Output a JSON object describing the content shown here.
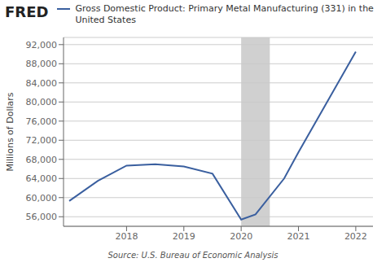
{
  "chart_data": {
    "type": "line",
    "title": "FRED",
    "ylabel": "Millions of Dollars",
    "annotations": [
      "Source: U.S. Bureau of Economic Analysis"
    ],
    "x": [
      2017.0,
      2017.5,
      2018.0,
      2018.5,
      2019.0,
      2019.5,
      2020.0,
      2020.25,
      2020.75,
      2021.0,
      2021.5,
      2022.0
    ],
    "series": [
      {
        "name": "Gross Domestic Product: Primary Metal Manufacturing (331) in the United States",
        "color": "#3a5f9f",
        "values": [
          59300,
          63500,
          66700,
          67000,
          66500,
          65000,
          55400,
          56500,
          64000,
          69500,
          80000,
          90500
        ]
      }
    ],
    "recession": {
      "start": 2020.0,
      "end": 2020.5,
      "color": "#c8c8c8"
    },
    "xlim": [
      2016.9,
      2022.3
    ],
    "ylim": [
      54000,
      93500
    ],
    "xticks": [
      2018,
      2019,
      2020,
      2021,
      2022
    ],
    "yticks": [
      {
        "value": 56000,
        "label": "56,000"
      },
      {
        "value": 60000,
        "label": "60,000"
      },
      {
        "value": 64000,
        "label": "64,000"
      },
      {
        "value": 68000,
        "label": "68,000"
      },
      {
        "value": 72000,
        "label": "72,000"
      },
      {
        "value": 76000,
        "label": "76,000"
      },
      {
        "value": 80000,
        "label": "80,000"
      },
      {
        "value": 84000,
        "label": "84,000"
      },
      {
        "value": 88000,
        "label": "88,000"
      },
      {
        "value": 92000,
        "label": "92,000"
      }
    ],
    "grid": true,
    "legend": "top left"
  }
}
